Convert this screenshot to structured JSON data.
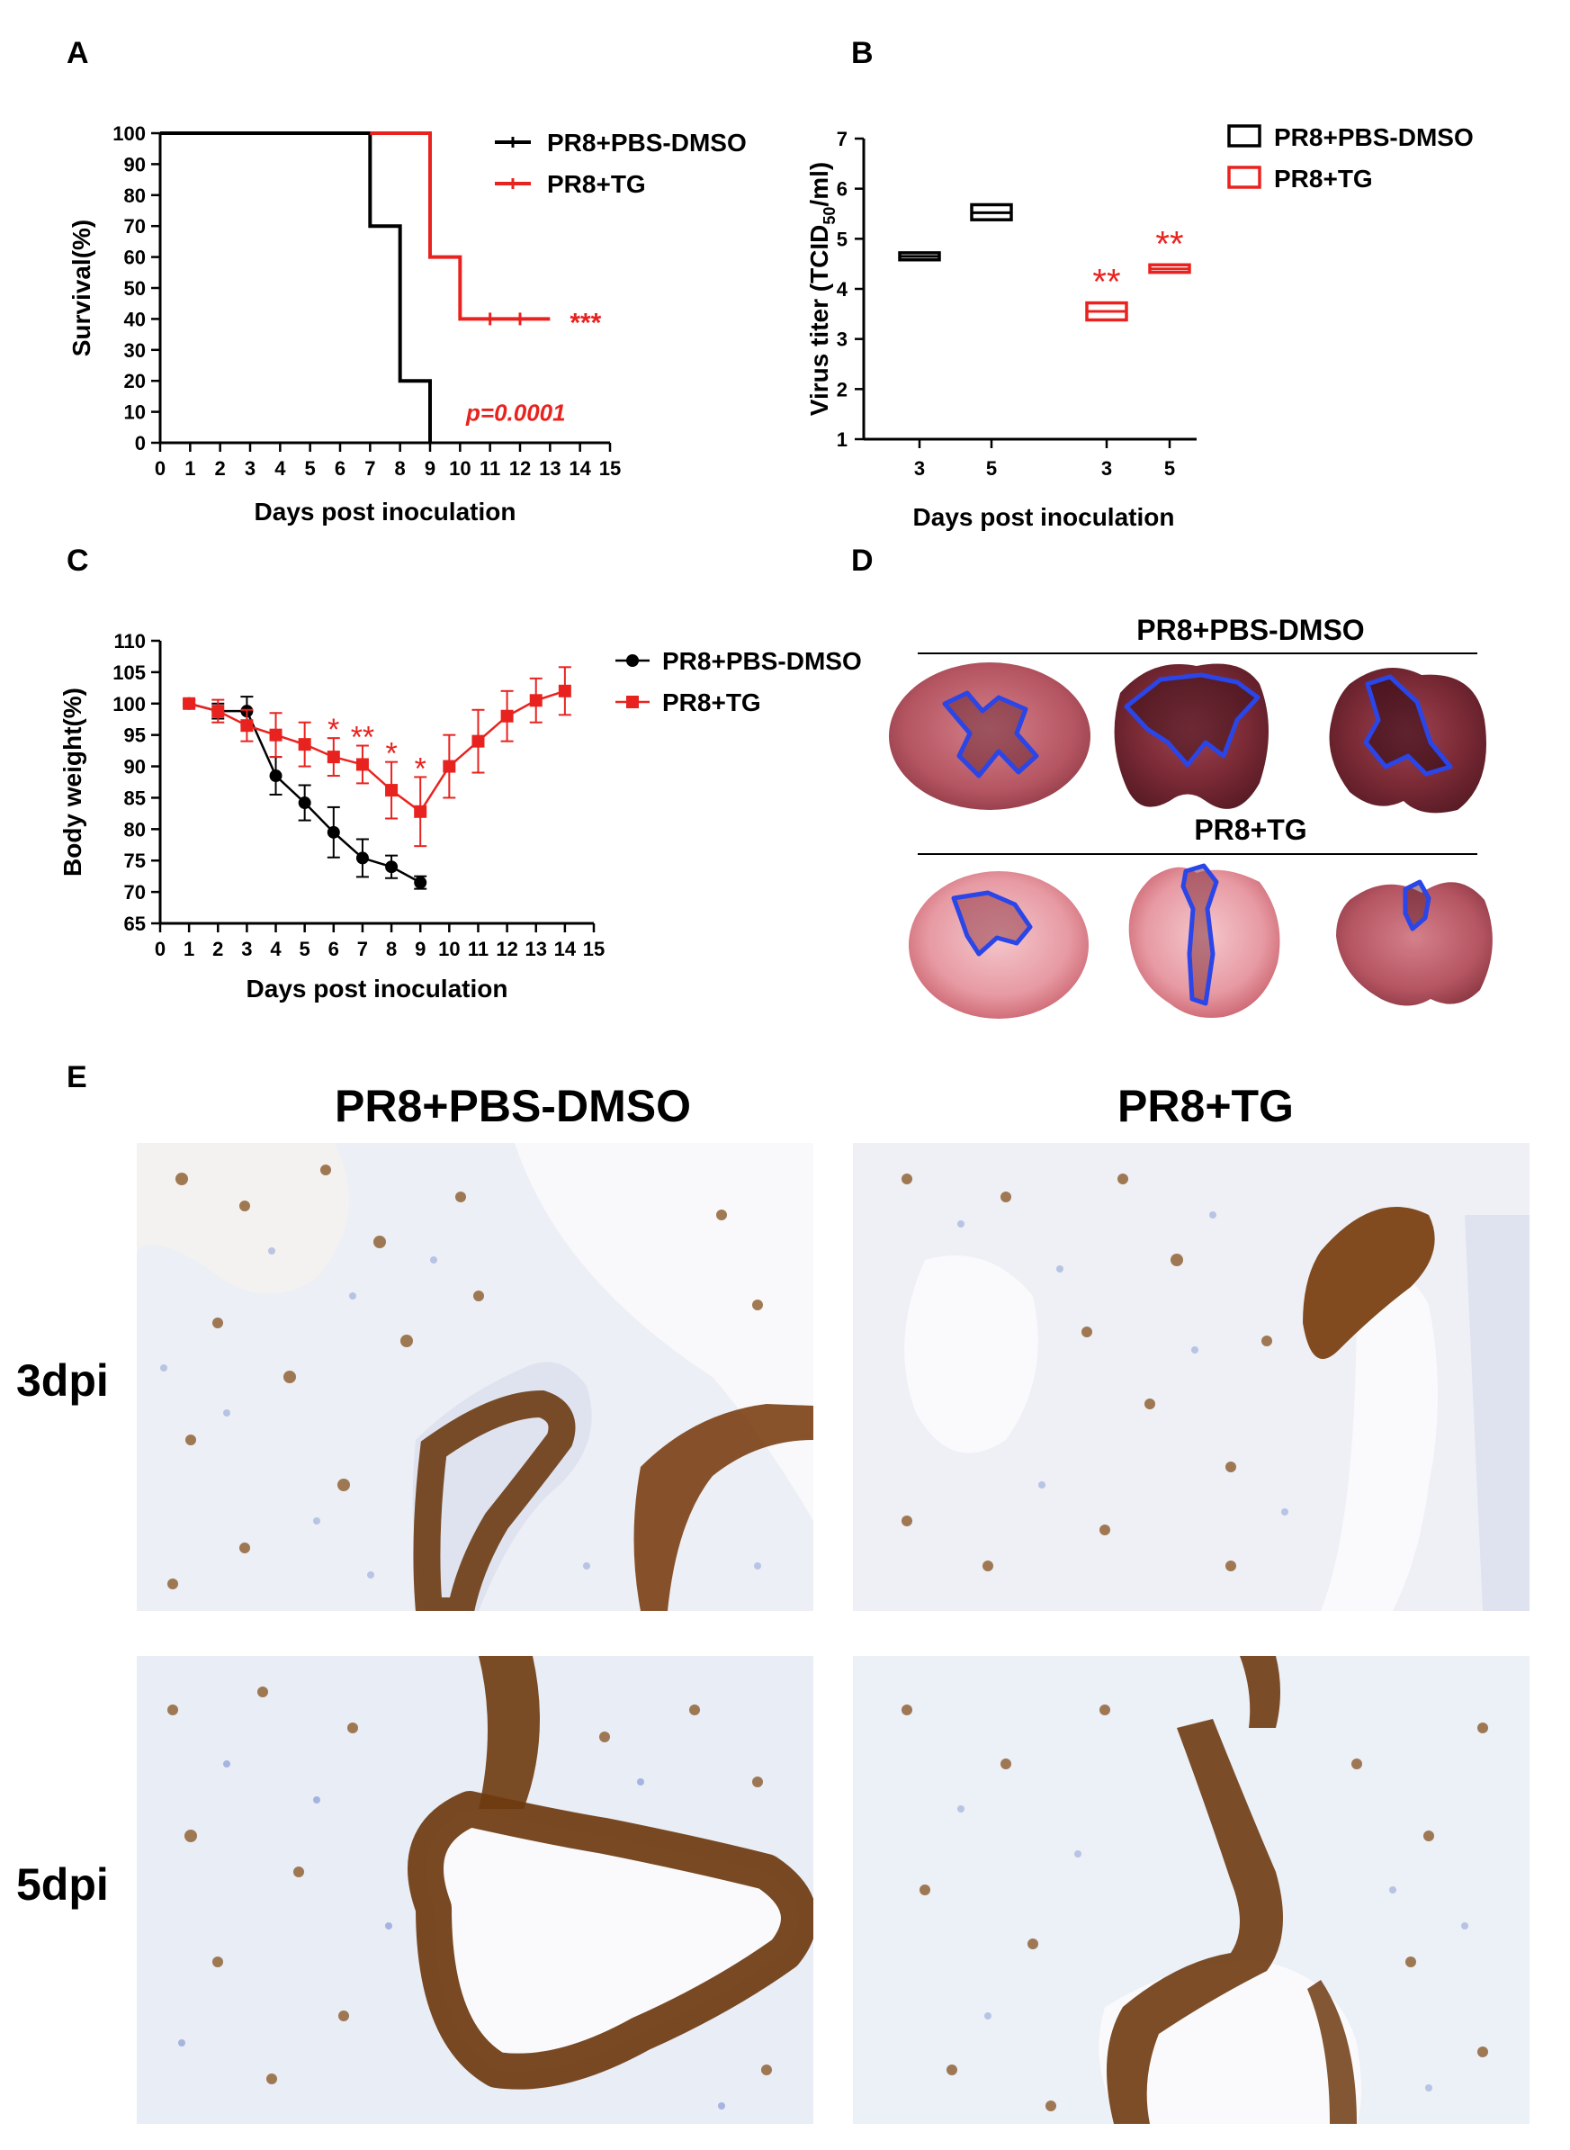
{
  "panels": {
    "A": "A",
    "B": "B",
    "C": "C",
    "D": "D",
    "E": "E"
  },
  "colors": {
    "control": "#000000",
    "treated": "#e8231f",
    "outline": "#2a45e8"
  },
  "chart_data": [
    {
      "type": "line",
      "panel": "A",
      "xlabel": "Days post inoculation",
      "ylabel": "Survival(%)",
      "xlim": [
        0,
        15
      ],
      "ylim": [
        0,
        100
      ],
      "xticks": [
        "0",
        "1",
        "2",
        "3",
        "4",
        "5",
        "6",
        "7",
        "8",
        "9",
        "10",
        "11",
        "12",
        "13",
        "14",
        "15"
      ],
      "yticks": [
        "0",
        "10",
        "20",
        "30",
        "40",
        "50",
        "60",
        "70",
        "80",
        "90",
        "100"
      ],
      "legend_position": "top-right",
      "series": [
        {
          "name": "PR8+PBS-DMSO",
          "x": [
            0,
            7,
            8,
            9
          ],
          "y": [
            100,
            70,
            20,
            0
          ],
          "step": true,
          "end_x": 9
        },
        {
          "name": "PR8+TG",
          "x": [
            7,
            9,
            10,
            13
          ],
          "y": [
            100,
            60,
            40,
            40
          ],
          "step": true,
          "end_x": 13
        }
      ],
      "annotations": [
        "***",
        "p=0.0001"
      ]
    },
    {
      "type": "box",
      "panel": "B",
      "xlabel": "Days post inoculation",
      "ylabel_main": "Virus titer (TCID",
      "ylabel_sub": "50",
      "ylabel_end": "/ml)",
      "ylim": [
        1,
        7
      ],
      "yticks": [
        "1",
        "2",
        "3",
        "4",
        "5",
        "6",
        "7"
      ],
      "categories": [
        "3",
        "5",
        "3",
        "5"
      ],
      "legend_position": "top-right",
      "series": [
        {
          "name": "PR8+PBS-DMSO",
          "boxes": [
            {
              "x": "3",
              "low": 4.58,
              "mid": 4.65,
              "high": 4.72
            },
            {
              "x": "5",
              "low": 5.38,
              "mid": 5.52,
              "high": 5.68
            }
          ]
        },
        {
          "name": "PR8+TG",
          "boxes": [
            {
              "x": "3",
              "low": 3.38,
              "mid": 3.55,
              "high": 3.72
            },
            {
              "x": "5",
              "low": 4.33,
              "mid": 4.4,
              "high": 4.48
            }
          ]
        }
      ],
      "annotations": [
        "**",
        "**"
      ]
    },
    {
      "type": "line",
      "panel": "C",
      "xlabel": "Days post inoculation",
      "ylabel": "Body weight(%)",
      "xlim": [
        0,
        15
      ],
      "ylim": [
        65,
        110
      ],
      "xticks": [
        "0",
        "1",
        "2",
        "3",
        "4",
        "5",
        "6",
        "7",
        "8",
        "9",
        "10",
        "11",
        "12",
        "13",
        "14",
        "15"
      ],
      "yticks": [
        "65",
        "70",
        "75",
        "80",
        "85",
        "90",
        "95",
        "100",
        "105",
        "110"
      ],
      "legend_position": "top-right",
      "series": [
        {
          "name": "PR8+PBS-DMSO",
          "x": [
            1,
            2,
            3,
            4,
            5,
            6,
            7,
            8,
            9
          ],
          "y": [
            100,
            98.8,
            98.8,
            88.5,
            84.2,
            79.5,
            75.4,
            74,
            71.5
          ],
          "err": [
            0.5,
            1.2,
            2.3,
            3,
            2.8,
            4,
            3,
            1.8,
            1
          ]
        },
        {
          "name": "PR8+TG",
          "x": [
            1,
            2,
            3,
            4,
            5,
            6,
            7,
            8,
            9,
            10,
            11,
            12,
            13,
            14
          ],
          "y": [
            100,
            98.8,
            96.5,
            95,
            93.5,
            91.5,
            90.3,
            86.2,
            82.8,
            90,
            94,
            98,
            100.5,
            102
          ],
          "err": [
            0.5,
            1.8,
            2.5,
            3.5,
            3.5,
            3,
            3,
            4.5,
            5.5,
            5,
            5,
            4,
            3.5,
            3.8
          ]
        }
      ],
      "annotations": [
        {
          "x": 6,
          "label": "*"
        },
        {
          "x": 7,
          "label": "**"
        },
        {
          "x": 8,
          "label": "*"
        },
        {
          "x": 9,
          "label": "*"
        }
      ]
    }
  ],
  "panel_d": {
    "top_label": "PR8+PBS-DMSO",
    "bottom_label": "PR8+TG"
  },
  "panel_e": {
    "col_left": "PR8+PBS-DMSO",
    "col_right": "PR8+TG",
    "row_top": "3dpi",
    "row_bottom": "5dpi"
  }
}
